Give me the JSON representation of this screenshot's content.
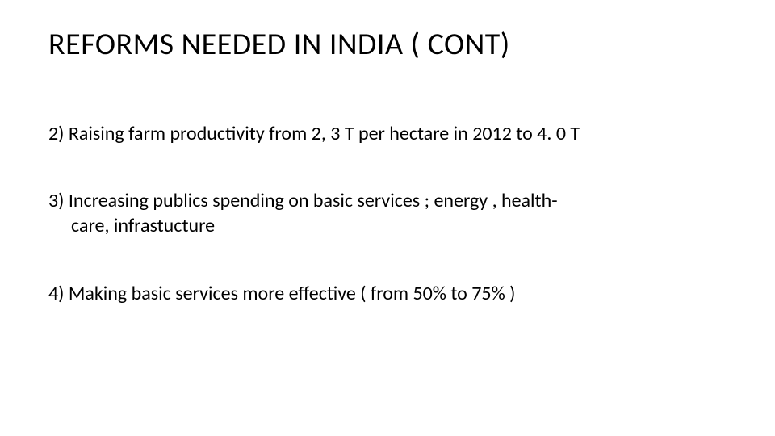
{
  "slide": {
    "title": "REFORMS NEEDED IN INDIA ( CONT)",
    "items": [
      {
        "text": "2) Raising farm productivity from 2, 3 T per hectare in 2012 to 4. 0 T"
      },
      {
        "text_line1": "3) Increasing publics spending on basic services ; energy , health-",
        "text_line2": "care, infrastucture"
      },
      {
        "text": "4) Making basic services more effective ( from 50% to 75% )"
      }
    ],
    "colors": {
      "background": "#ffffff",
      "text": "#000000"
    },
    "typography": {
      "title_fontsize": 38,
      "body_fontsize": 24,
      "font_family": "Calibri"
    }
  }
}
